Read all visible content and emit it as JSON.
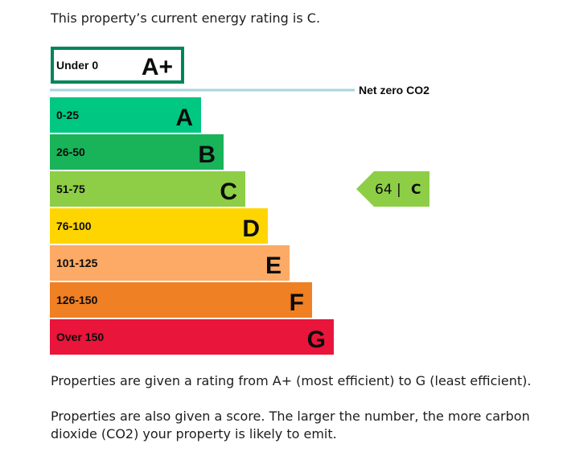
{
  "intro_text": "This property’s current energy rating is C.",
  "chart_data": {
    "type": "bar",
    "title": "",
    "top_band": {
      "range": "Under 0",
      "letter": "A+",
      "color": "#00855a"
    },
    "net_zero_label": "Net zero CO2",
    "net_zero_line_color": "#a7d3e2",
    "bands": [
      {
        "range": "0-25",
        "letter": "A",
        "color": "#00c781"
      },
      {
        "range": "26-50",
        "letter": "B",
        "color": "#19b459"
      },
      {
        "range": "51-75",
        "letter": "C",
        "color": "#8dce46"
      },
      {
        "range": "76-100",
        "letter": "D",
        "color": "#ffd500"
      },
      {
        "range": "101-125",
        "letter": "E",
        "color": "#fcaa65"
      },
      {
        "range": "126-150",
        "letter": "F",
        "color": "#ef8023"
      },
      {
        "range": "Over 150",
        "letter": "G",
        "color": "#e9153b"
      }
    ],
    "current": {
      "score": 64,
      "score_text": "64 |",
      "letter": "C",
      "band_index": 2,
      "color": "#8dce46"
    }
  },
  "paragraph_1": "Properties are given a rating from A+ (most efficient) to G (least efficient).",
  "paragraph_2": "Properties are also given a score. The larger the number, the more carbon dioxide (CO2) your property is likely to emit."
}
